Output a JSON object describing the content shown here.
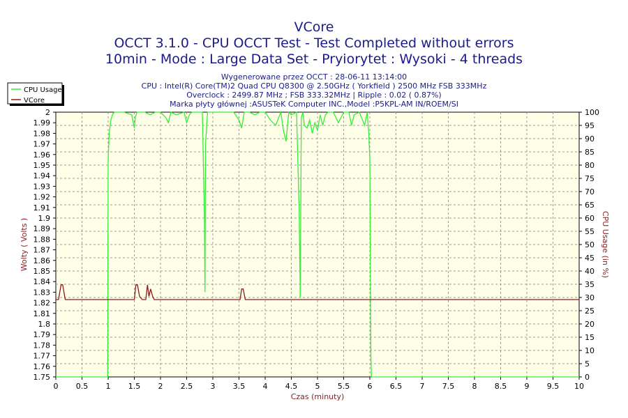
{
  "header": {
    "title": "VCore",
    "line2": "OCCT 3.1.0 - CPU OCCT Test - Test Completed without errors",
    "line3": "10min - Mode : Large Data Set - Pryiorytet : Wysoki - 4 threads"
  },
  "info": {
    "line1": "Wygenerowane przez OCCT : 28-06-11 13:14:00",
    "line2": "CPU : Intel(R) Core(TM)2 Quad CPU Q8300 @ 2.50GHz ( Yorkfield ) 2500 MHz FSB 333MHz",
    "line3": "Overclock : 2499.87 MHz ; FSB 333.32MHz | Ripple : 0.02 ( 0.87%)",
    "line4": "Marka płyty głównej :ASUSTeK Computer INC.,Model :P5KPL-AM IN/ROEM/SI"
  },
  "legend": {
    "items": [
      {
        "label": "CPU Usage",
        "color": "#33ee33"
      },
      {
        "label": "VCore",
        "color": "#8b1a1a"
      }
    ]
  },
  "colors": {
    "title": "#1a1a8c",
    "cpu_line": "#33ee33",
    "vcore_line": "#8b1a1a",
    "grid": "#999999"
  },
  "chart_data": {
    "type": "line",
    "xlabel": "Czas (minuty)",
    "ylabel": "Wolty ( Volts )",
    "y2label": "CPU Usage (in %)",
    "xlim": [
      0,
      10
    ],
    "ylim": [
      1.75,
      2.0
    ],
    "y2lim": [
      0,
      100
    ],
    "grid": true,
    "legend_position": "top-left",
    "x_ticks": [
      "0",
      "0.5",
      "1",
      "1.5",
      "2",
      "2.5",
      "3",
      "3.5",
      "4",
      "4.5",
      "5",
      "5.5",
      "6",
      "6.5",
      "7",
      "7.5",
      "8",
      "8.5",
      "9",
      "9.5",
      "10"
    ],
    "y_ticks": [
      "2",
      "1.99",
      "1.98",
      "1.97",
      "1.96",
      "1.95",
      "1.94",
      "1.93",
      "1.92",
      "1.91",
      "1.9",
      "1.89",
      "1.88",
      "1.87",
      "1.86",
      "1.85",
      "1.84",
      "1.83",
      "1.82",
      "1.81",
      "1.8",
      "1.79",
      "1.78",
      "1.77",
      "1.76",
      "1.75"
    ],
    "y2_ticks": [
      "100",
      "95",
      "90",
      "85",
      "80",
      "75",
      "70",
      "65",
      "60",
      "55",
      "50",
      "45",
      "40",
      "35",
      "30",
      "25",
      "20",
      "15",
      "10",
      "5",
      "0"
    ],
    "series": [
      {
        "name": "CPU Usage",
        "axis": "right",
        "x": [
          0,
          0.99,
          1.0,
          1.02,
          1.05,
          1.08,
          1.12,
          1.2,
          1.3,
          1.45,
          1.5,
          1.52,
          1.55,
          1.6,
          1.7,
          1.8,
          1.9,
          2.0,
          2.1,
          2.15,
          2.2,
          2.3,
          2.45,
          2.5,
          2.55,
          2.6,
          2.7,
          2.8,
          2.84,
          2.85,
          2.86,
          2.9,
          3.0,
          3.2,
          3.4,
          3.5,
          3.55,
          3.6,
          3.7,
          3.8,
          3.9,
          4.0,
          4.1,
          4.2,
          4.3,
          4.35,
          4.4,
          4.45,
          4.5,
          4.6,
          4.65,
          4.67,
          4.69,
          4.72,
          4.75,
          4.8,
          4.85,
          4.9,
          4.95,
          5.0,
          5.05,
          5.1,
          5.15,
          5.2,
          5.3,
          5.4,
          5.5,
          5.6,
          5.65,
          5.7,
          5.8,
          5.9,
          5.95,
          5.98,
          6.0,
          6.02,
          6.03,
          6.05,
          10
        ],
        "values": [
          0,
          0,
          82,
          92,
          97,
          99,
          100,
          100,
          100,
          99,
          94,
          98,
          100,
          100,
          100,
          99,
          100,
          100,
          98,
          96,
          100,
          99,
          100,
          96,
          99,
          100,
          100,
          100,
          60,
          32,
          88,
          100,
          100,
          100,
          100,
          97,
          94,
          100,
          100,
          99,
          100,
          100,
          97,
          95,
          100,
          93,
          89,
          100,
          99,
          100,
          62,
          30,
          98,
          100,
          95,
          94,
          97,
          92,
          96,
          93,
          99,
          95,
          99,
          100,
          100,
          96,
          100,
          100,
          95,
          99,
          100,
          95,
          100,
          92,
          82,
          8,
          0,
          0,
          0
        ]
      },
      {
        "name": "VCore",
        "axis": "left",
        "x": [
          0,
          0.05,
          0.1,
          0.13,
          0.18,
          1.5,
          1.53,
          1.56,
          1.6,
          1.65,
          1.72,
          1.75,
          1.78,
          1.81,
          1.85,
          1.88,
          3.52,
          3.55,
          3.58,
          3.62,
          10
        ],
        "values": [
          1.823,
          1.823,
          1.837,
          1.837,
          1.823,
          1.823,
          1.837,
          1.837,
          1.826,
          1.823,
          1.823,
          1.837,
          1.826,
          1.833,
          1.826,
          1.823,
          1.823,
          1.833,
          1.833,
          1.823,
          1.823
        ]
      }
    ]
  }
}
